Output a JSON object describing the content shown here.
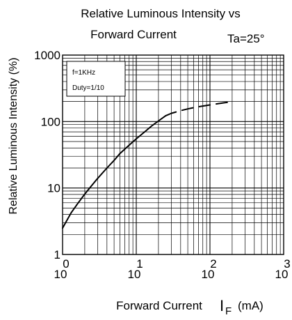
{
  "chart_data": {
    "type": "line",
    "title_line1": "Relative Luminous Intensity vs",
    "title_line2": "Forward Current",
    "condition": "Ta=25°",
    "ylabel": "Relative Luminous Intensity  (%)",
    "xlabel_main": "Forward Current",
    "xlabel_symbol": "I",
    "xlabel_sub": "F",
    "xlabel_unit": "(mA)",
    "x_scale": "log",
    "y_scale": "log",
    "xlim": [
      1,
      1000
    ],
    "ylim": [
      1,
      1000
    ],
    "grid": true,
    "x_ticks": [
      {
        "value": 1,
        "base": "10",
        "exp": "0"
      },
      {
        "value": 10,
        "base": "10",
        "exp": "1"
      },
      {
        "value": 100,
        "base": "10",
        "exp": "2"
      },
      {
        "value": 1000,
        "base": "10",
        "exp": "3"
      }
    ],
    "y_ticks": [
      {
        "value": 1,
        "label": "1"
      },
      {
        "value": 10,
        "label": "10"
      },
      {
        "value": 100,
        "label": "100"
      },
      {
        "value": 1000,
        "label": "1000"
      }
    ],
    "legend": {
      "placement": "top-left",
      "lines": [
        "f=1KHz",
        "Duty=1/10"
      ]
    },
    "series": [
      {
        "style": "solid",
        "x": [
          1,
          1.3,
          1.6,
          2,
          2.5,
          3,
          4,
          5,
          6,
          8,
          10,
          13,
          16,
          20,
          25
        ],
        "y": [
          2.5,
          4.2,
          5.8,
          8.1,
          11,
          14,
          20,
          26,
          33,
          44,
          55,
          70,
          85,
          102,
          122
        ]
      },
      {
        "style": "dashed",
        "x": [
          25,
          30,
          40,
          50,
          60,
          80,
          100,
          130,
          160,
          200
        ],
        "y": [
          122,
          133,
          146,
          155,
          162,
          171,
          178,
          186,
          192,
          198
        ]
      }
    ]
  }
}
